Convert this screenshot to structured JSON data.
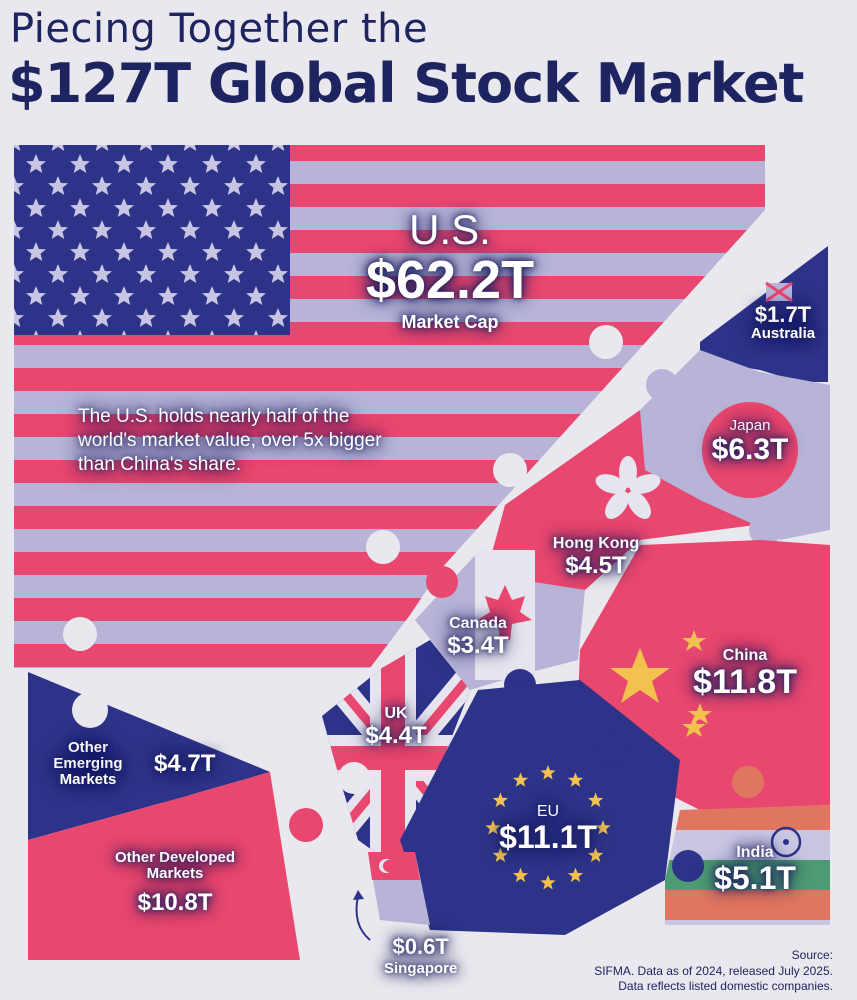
{
  "title": {
    "line1": "Piecing Together the",
    "line2": "$127T Global Stock Market"
  },
  "note": "The U.S. holds nearly half of the world's market value, over 5x bigger than China's share.",
  "source": {
    "line1": "Source:",
    "line2": "SIFMA. Data as of 2024, released July 2025.",
    "line3": "Data reflects listed domestic companies."
  },
  "colors": {
    "navy": "#2d3388",
    "pink": "#e8476f",
    "lavender": "#b7b4d8",
    "background": "#e9e8ee",
    "title": "#1e2460",
    "gold": "#f2c14e"
  },
  "chart_data": {
    "type": "treemap",
    "title": "$127T Global Stock Market",
    "unit": "USD trillions",
    "total": 127,
    "pieces": [
      {
        "name": "U.S.",
        "value": 62.2,
        "value_label": "$62.2T",
        "sub": "Market Cap"
      },
      {
        "name": "China",
        "value": 11.8,
        "value_label": "$11.8T"
      },
      {
        "name": "EU",
        "value": 11.1,
        "value_label": "$11.1T"
      },
      {
        "name": "Other Developed Markets",
        "value": 10.8,
        "value_label": "$10.8T"
      },
      {
        "name": "Japan",
        "value": 6.3,
        "value_label": "$6.3T"
      },
      {
        "name": "India",
        "value": 5.1,
        "value_label": "$5.1T"
      },
      {
        "name": "Other Emerging Markets",
        "value": 4.7,
        "value_label": "$4.7T"
      },
      {
        "name": "Hong Kong",
        "value": 4.5,
        "value_label": "$4.5T"
      },
      {
        "name": "UK",
        "value": 4.4,
        "value_label": "$4.4T"
      },
      {
        "name": "Canada",
        "value": 3.4,
        "value_label": "$3.4T"
      },
      {
        "name": "Australia",
        "value": 1.7,
        "value_label": "$1.7T"
      },
      {
        "name": "Singapore",
        "value": 0.6,
        "value_label": "$0.6T"
      }
    ]
  }
}
